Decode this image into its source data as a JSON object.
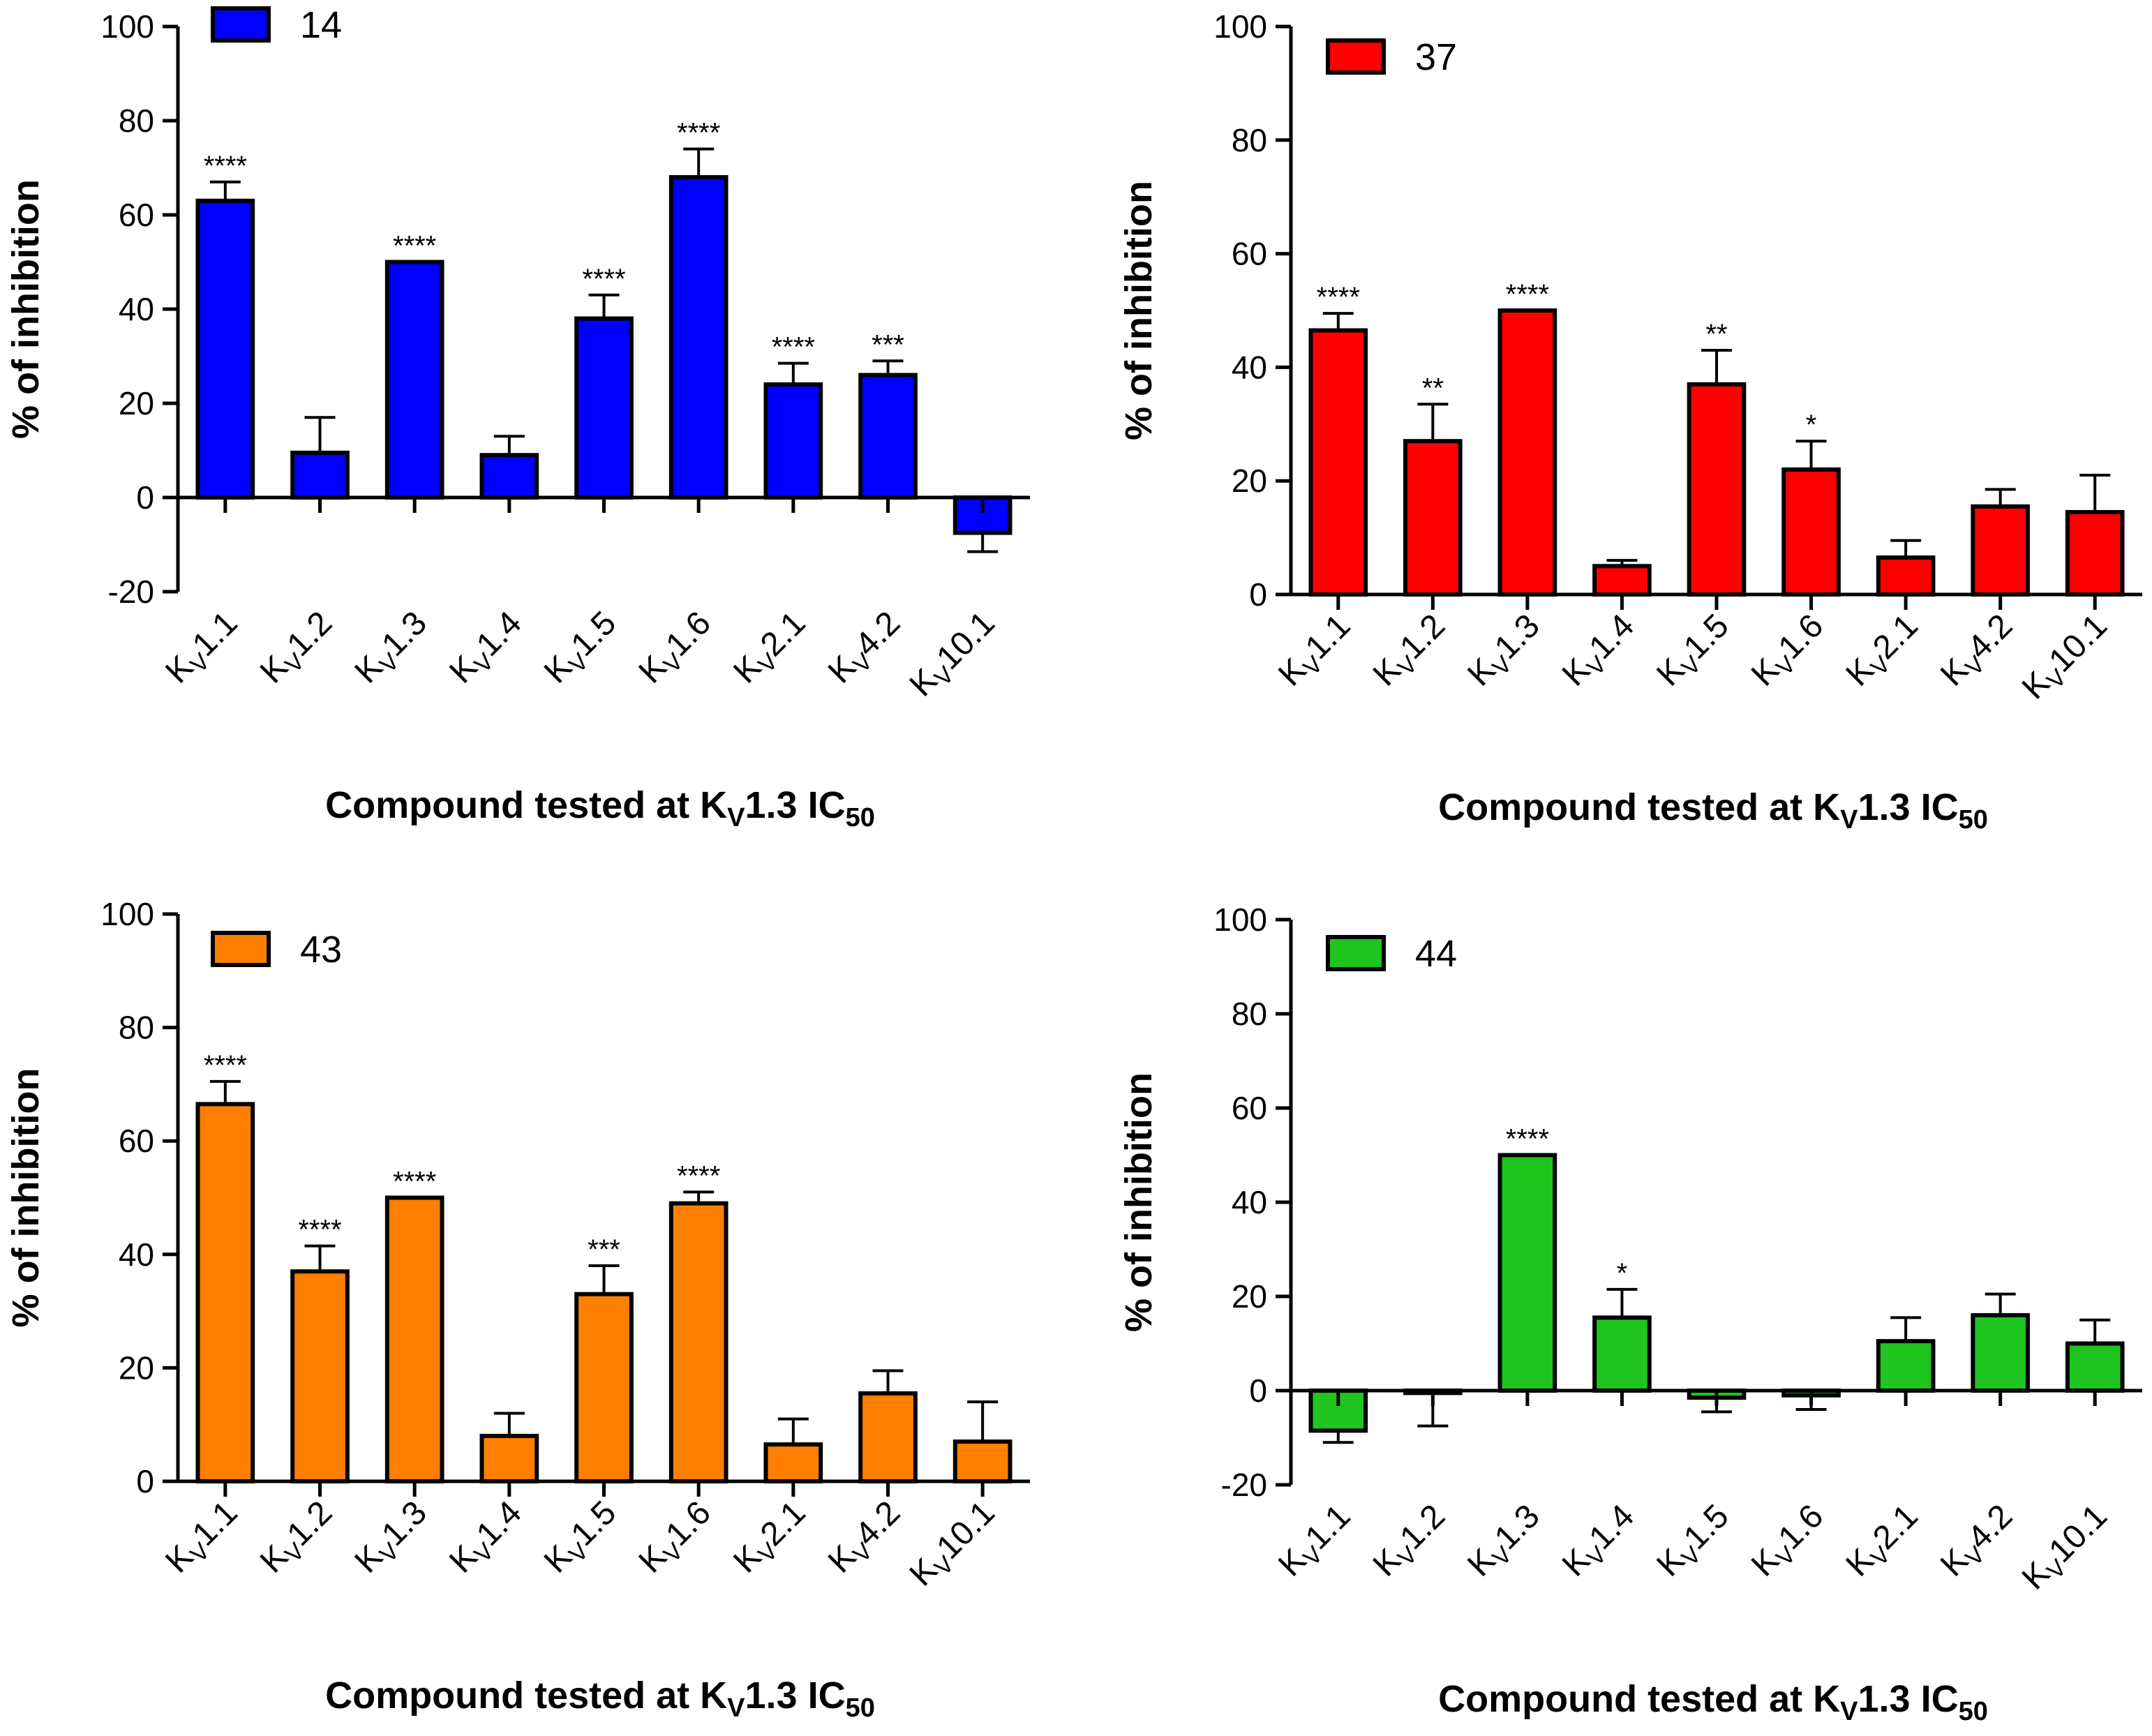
{
  "chart_data": [
    {
      "type": "bar",
      "legend": "14",
      "color": "#0000ff",
      "ylim": [
        -20,
        100
      ],
      "yticks": [
        -20,
        0,
        20,
        40,
        60,
        80,
        100
      ],
      "categories": [
        "KV1.1",
        "KV1.2",
        "KV1.3",
        "KV1.4",
        "KV1.5",
        "KV1.6",
        "KV2.1",
        "KV4.2",
        "KV10.1"
      ],
      "values": [
        63,
        9.5,
        50,
        9,
        38,
        68,
        24,
        26,
        -7.5
      ],
      "errors": [
        4,
        7.5,
        0,
        4,
        5,
        6,
        4.5,
        3,
        4
      ],
      "significance": [
        "****",
        "",
        "****",
        "",
        "****",
        "****",
        "****",
        "***",
        ""
      ],
      "ylabel": "% of inhibition",
      "xlabel": "Compound tested at KV1.3 IC50"
    },
    {
      "type": "bar",
      "legend": "37",
      "color": "#ff0000",
      "ylim": [
        0,
        100
      ],
      "yticks": [
        0,
        20,
        40,
        60,
        80,
        100
      ],
      "categories": [
        "KV1.1",
        "KV1.2",
        "KV1.3",
        "KV1.4",
        "KV1.5",
        "KV1.6",
        "KV2.1",
        "KV4.2",
        "KV10.1"
      ],
      "values": [
        46.5,
        27,
        50,
        5,
        37,
        22,
        6.5,
        15.5,
        14.5
      ],
      "errors": [
        3,
        6.5,
        0,
        1,
        6,
        5,
        3,
        3,
        6.5
      ],
      "significance": [
        "****",
        "**",
        "****",
        "",
        "**",
        "*",
        "",
        "",
        ""
      ],
      "ylabel": "% of inhibition",
      "xlabel": "Compound tested at KV1.3 IC50"
    },
    {
      "type": "bar",
      "legend": "43",
      "color": "#ff8000",
      "ylim": [
        0,
        100
      ],
      "yticks": [
        0,
        20,
        40,
        60,
        80,
        100
      ],
      "categories": [
        "KV1.1",
        "KV1.2",
        "KV1.3",
        "KV1.4",
        "KV1.5",
        "KV1.6",
        "KV2.1",
        "KV4.2",
        "KV10.1"
      ],
      "values": [
        66.5,
        37,
        50,
        8,
        33,
        49,
        6.5,
        15.5,
        7
      ],
      "errors": [
        4,
        4.5,
        0,
        4,
        5,
        2,
        4.5,
        4,
        7
      ],
      "significance": [
        "****",
        "****",
        "****",
        "",
        "***",
        "****",
        "",
        "",
        ""
      ],
      "ylabel": "% of inhibition",
      "xlabel": "Compound tested at KV1.3 IC50"
    },
    {
      "type": "bar",
      "legend": "44",
      "color": "#1fc41f",
      "ylim": [
        -20,
        100
      ],
      "yticks": [
        -20,
        0,
        20,
        40,
        60,
        80,
        100
      ],
      "categories": [
        "KV1.1",
        "KV1.2",
        "KV1.3",
        "KV1.4",
        "KV1.5",
        "KV1.6",
        "KV2.1",
        "KV4.2",
        "KV10.1"
      ],
      "values": [
        -8.5,
        -0.5,
        50,
        15.5,
        -1.5,
        -1,
        10.5,
        16,
        10
      ],
      "errors": [
        2.5,
        7,
        0,
        6,
        3,
        3,
        5,
        4.5,
        5
      ],
      "significance": [
        "",
        "",
        "****",
        "*",
        "",
        "",
        "",
        "",
        ""
      ],
      "ylabel": "% of inhibition",
      "xlabel": "Compound tested at KV1.3 IC50"
    }
  ]
}
